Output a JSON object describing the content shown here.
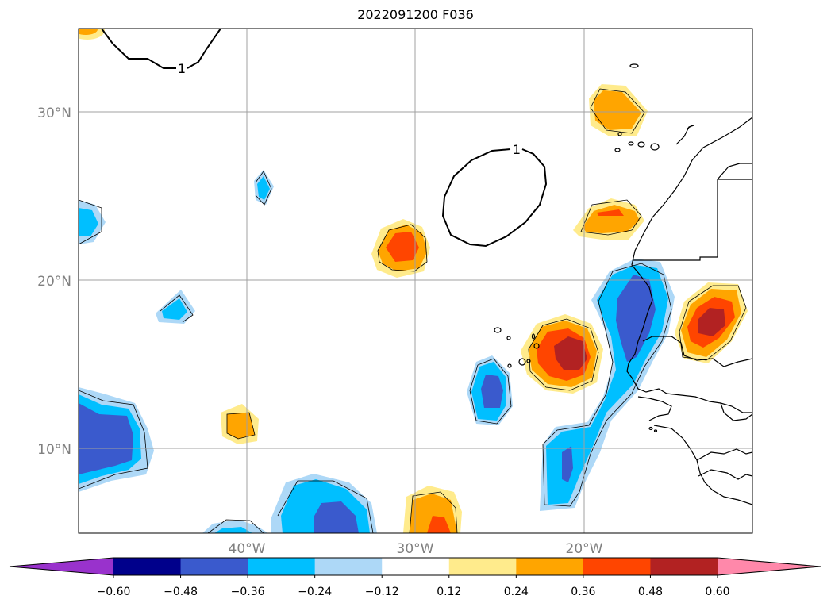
{
  "title": "2022091200 F036",
  "map": {
    "lat_labels": [
      "30°N",
      "20°N",
      "10°N"
    ],
    "lon_labels": [
      "40°W",
      "30°W",
      "20°W"
    ],
    "contour_label": "1"
  },
  "colorbar": {
    "ticks": [
      "−0.60",
      "−0.48",
      "−0.36",
      "−0.24",
      "−0.12",
      "0.12",
      "0.24",
      "0.36",
      "0.48",
      "0.60"
    ],
    "colors": [
      "#9932cc",
      "#00008b",
      "#3a5acd",
      "#00bfff",
      "#add8f7",
      "#ffffff",
      "#ffeb8c",
      "#ffa500",
      "#ff4500",
      "#b22222",
      "#ff88aa"
    ]
  }
}
